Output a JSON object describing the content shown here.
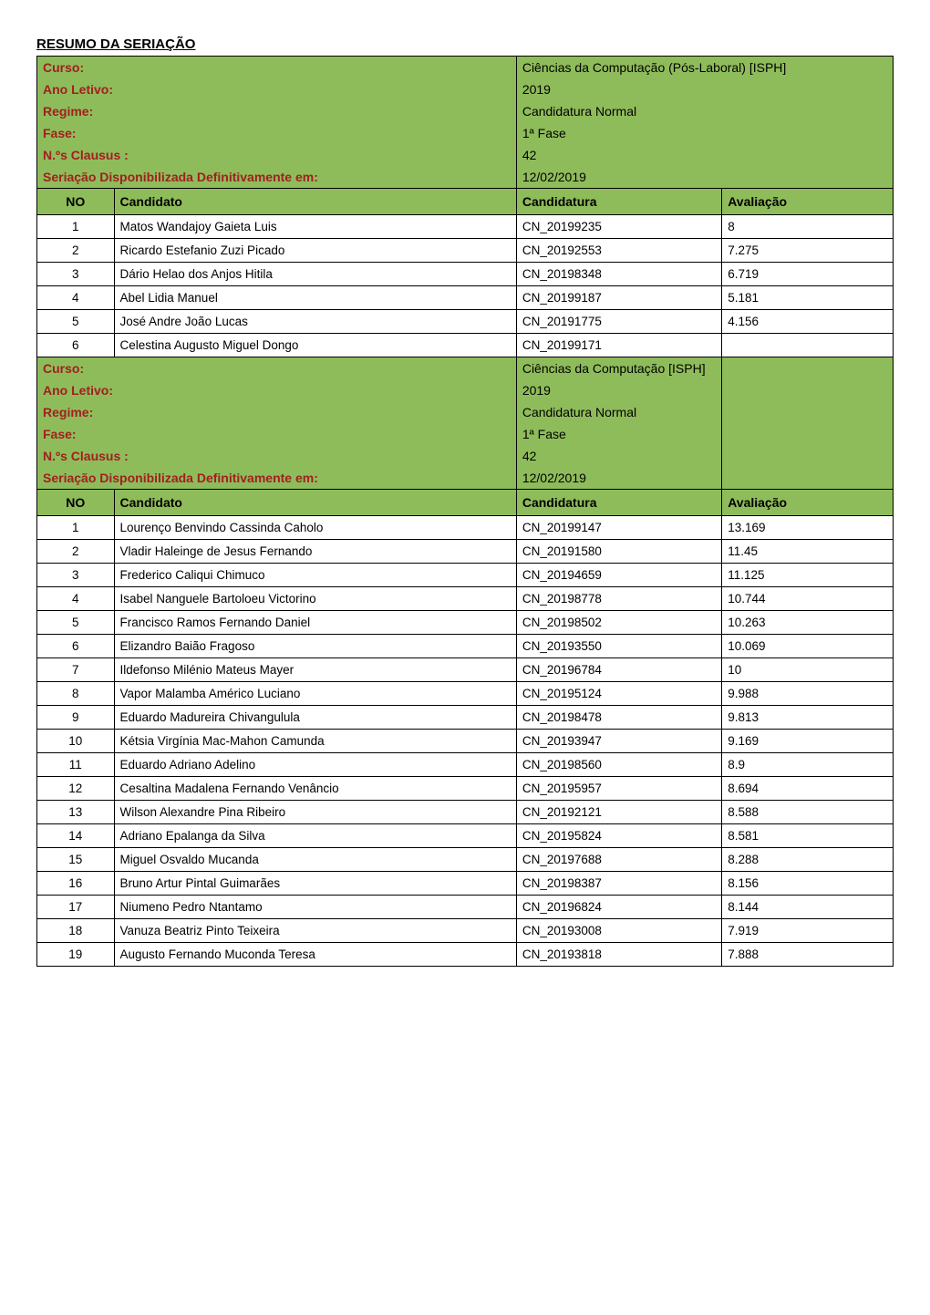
{
  "page_title": "RESUMO DA SERIAÇÃO",
  "colors": {
    "header_bg": "#8fbc5a",
    "label_text": "#a02020",
    "border": "#000000",
    "body_bg": "#ffffff"
  },
  "fonts": {
    "family": "Arial, sans-serif",
    "title_size": 15,
    "header_size": 14,
    "cell_size": 13.5
  },
  "labels": {
    "curso": "Curso:",
    "ano_letivo": "Ano Letivo:",
    "regime": "Regime:",
    "fase": "Fase:",
    "clausus": "N.ºs Clausus :",
    "seriacao": "Seriação Disponibilizada Definitivamente em:",
    "no": "NO",
    "candidato": "Candidato",
    "candidatura": "Candidatura",
    "avaliacao": "Avaliação"
  },
  "section1": {
    "curso": "Ciências da Computação (Pós-Laboral) [ISPH]",
    "ano_letivo": "2019",
    "regime": "Candidatura Normal",
    "fase": "1ª Fase",
    "clausus": "42",
    "seriacao": "12/02/2019",
    "rows": [
      {
        "no": "1",
        "candidato": "Matos Wandajoy Gaieta Luis",
        "candidatura": "CN_20199235",
        "avaliacao": "8"
      },
      {
        "no": "2",
        "candidato": "Ricardo Estefanio Zuzi Picado",
        "candidatura": "CN_20192553",
        "avaliacao": "7.275"
      },
      {
        "no": "3",
        "candidato": "Dário Helao dos Anjos Hitila",
        "candidatura": "CN_20198348",
        "avaliacao": "6.719"
      },
      {
        "no": "4",
        "candidato": "Abel Lidia Manuel",
        "candidatura": "CN_20199187",
        "avaliacao": "5.181"
      },
      {
        "no": "5",
        "candidato": "José Andre João Lucas",
        "candidatura": "CN_20191775",
        "avaliacao": "4.156"
      },
      {
        "no": "6",
        "candidato": "Celestina Augusto Miguel Dongo",
        "candidatura": "CN_20199171",
        "avaliacao": ""
      }
    ]
  },
  "section2": {
    "curso": "Ciências da Computação [ISPH]",
    "ano_letivo": "2019",
    "regime": "Candidatura Normal",
    "fase": "1ª Fase",
    "clausus": "42",
    "seriacao": "12/02/2019",
    "rows": [
      {
        "no": "1",
        "candidato": "Lourenço Benvindo Cassinda Caholo",
        "candidatura": "CN_20199147",
        "avaliacao": "13.169"
      },
      {
        "no": "2",
        "candidato": "Vladir Haleinge de Jesus Fernando",
        "candidatura": "CN_20191580",
        "avaliacao": "11.45"
      },
      {
        "no": "3",
        "candidato": "Frederico Caliqui Chimuco",
        "candidatura": "CN_20194659",
        "avaliacao": "11.125"
      },
      {
        "no": "4",
        "candidato": "Isabel Nanguele Bartoloeu Victorino",
        "candidatura": "CN_20198778",
        "avaliacao": "10.744"
      },
      {
        "no": "5",
        "candidato": "Francisco Ramos Fernando Daniel",
        "candidatura": "CN_20198502",
        "avaliacao": "10.263"
      },
      {
        "no": "6",
        "candidato": "Elizandro Baião Fragoso",
        "candidatura": "CN_20193550",
        "avaliacao": "10.069"
      },
      {
        "no": "7",
        "candidato": "Ildefonso Milénio Mateus Mayer",
        "candidatura": "CN_20196784",
        "avaliacao": "10"
      },
      {
        "no": "8",
        "candidato": "Vapor Malamba Américo Luciano",
        "candidatura": "CN_20195124",
        "avaliacao": "9.988"
      },
      {
        "no": "9",
        "candidato": "Eduardo Madureira Chivangulula",
        "candidatura": "CN_20198478",
        "avaliacao": "9.813"
      },
      {
        "no": "10",
        "candidato": "Kétsia Virgínia Mac-Mahon Camunda",
        "candidatura": "CN_20193947",
        "avaliacao": "9.169"
      },
      {
        "no": "11",
        "candidato": "Eduardo Adriano Adelino",
        "candidatura": "CN_20198560",
        "avaliacao": "8.9"
      },
      {
        "no": "12",
        "candidato": "Cesaltina Madalena Fernando Venâncio",
        "candidatura": "CN_20195957",
        "avaliacao": "8.694"
      },
      {
        "no": "13",
        "candidato": "Wilson Alexandre Pina Ribeiro",
        "candidatura": "CN_20192121",
        "avaliacao": "8.588"
      },
      {
        "no": "14",
        "candidato": "Adriano Epalanga da Silva",
        "candidatura": "CN_20195824",
        "avaliacao": "8.581"
      },
      {
        "no": "15",
        "candidato": "Miguel Osvaldo Mucanda",
        "candidatura": "CN_20197688",
        "avaliacao": "8.288"
      },
      {
        "no": "16",
        "candidato": "Bruno Artur Pintal Guimarães",
        "candidatura": "CN_20198387",
        "avaliacao": "8.156"
      },
      {
        "no": "17",
        "candidato": "Niumeno Pedro Ntantamo",
        "candidatura": "CN_20196824",
        "avaliacao": "8.144"
      },
      {
        "no": "18",
        "candidato": "Vanuza Beatriz Pinto Teixeira",
        "candidatura": "CN_20193008",
        "avaliacao": "7.919"
      },
      {
        "no": "19",
        "candidato": "Augusto Fernando Muconda Teresa",
        "candidatura": "CN_20193818",
        "avaliacao": "7.888"
      }
    ]
  }
}
